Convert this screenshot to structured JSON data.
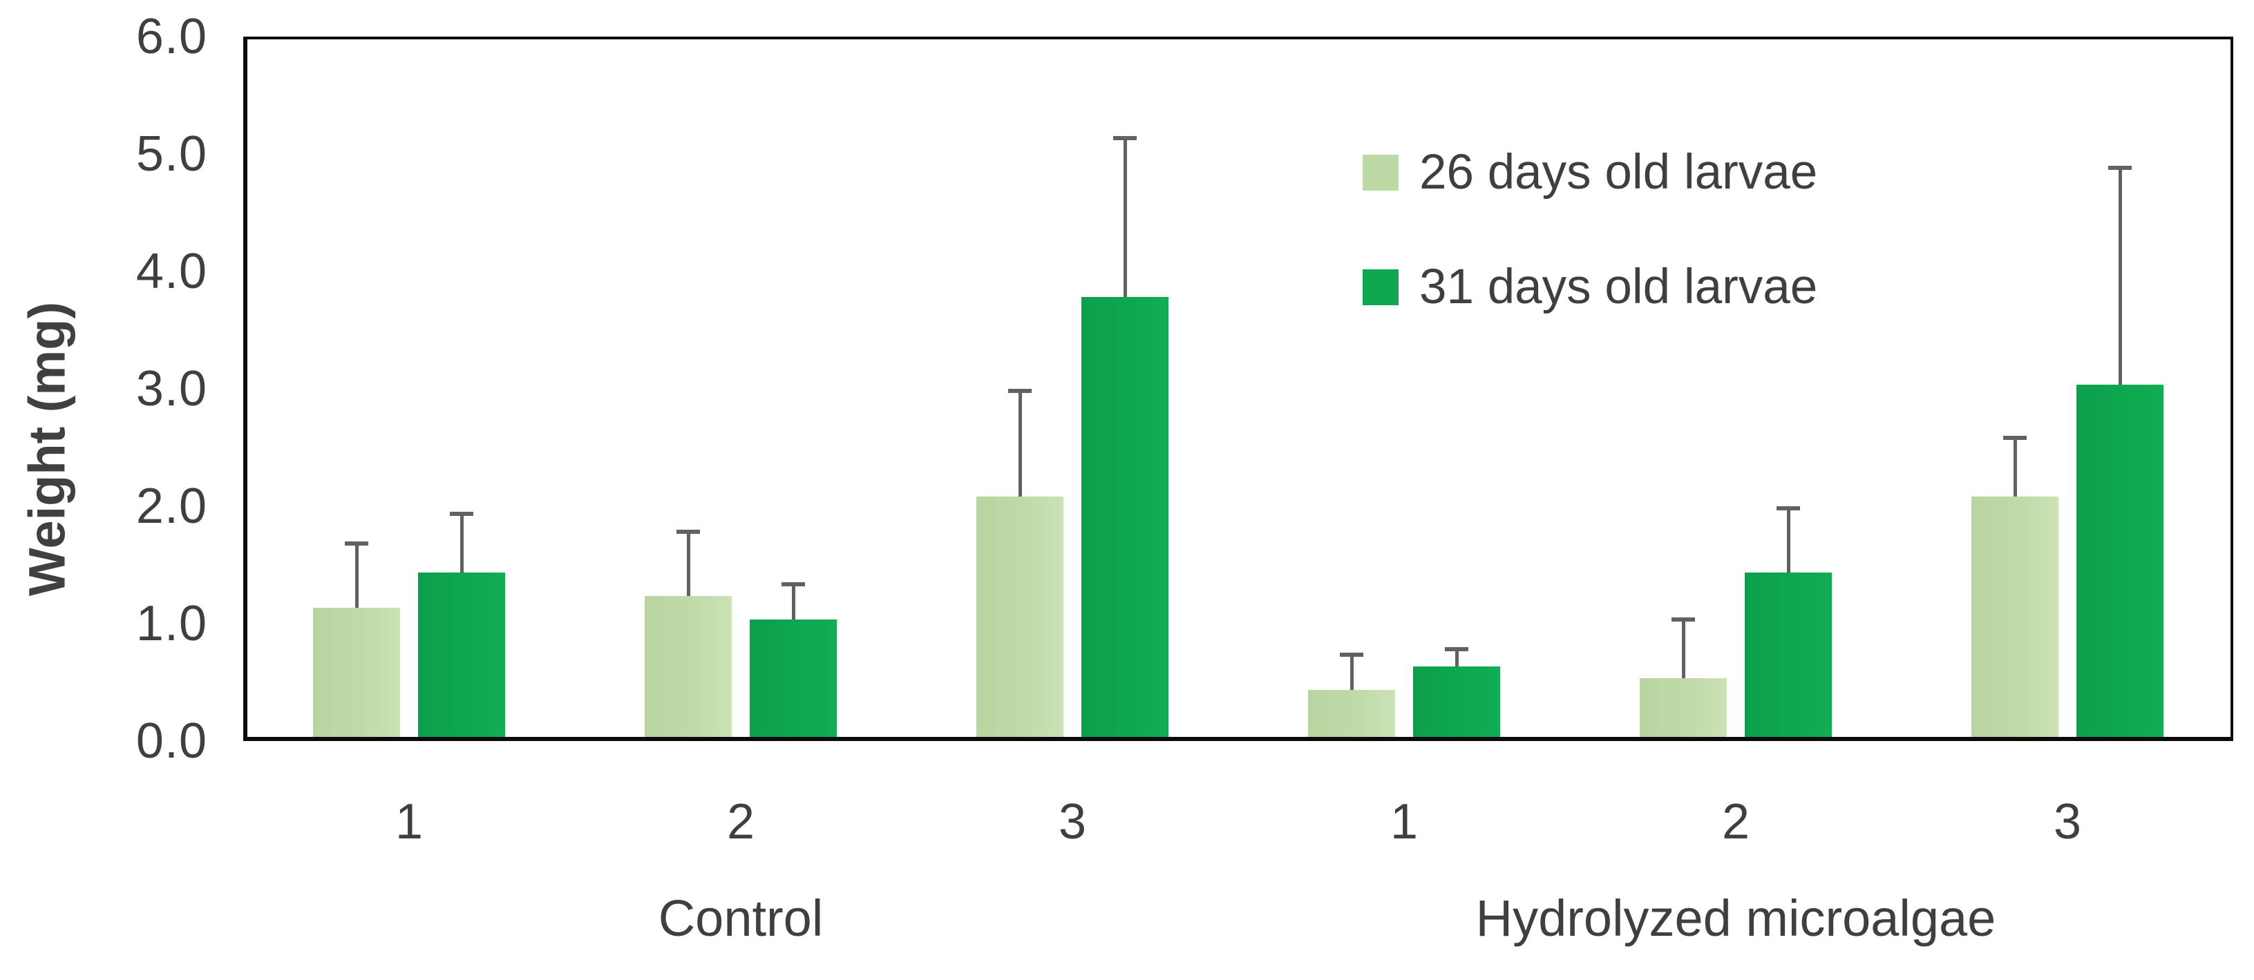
{
  "chart_data": {
    "type": "bar",
    "title": "",
    "ylabel": "Weight (mg)",
    "xlabel": "",
    "ylim": [
      0,
      6
    ],
    "ytick_labels": [
      "0.0",
      "1.0",
      "2.0",
      "3.0",
      "4.0",
      "5.0",
      "6.0"
    ],
    "categories": [
      "1",
      "2",
      "3",
      "1",
      "2",
      "3"
    ],
    "group_labels": [
      "Control",
      "Hydrolyzed microalgae"
    ],
    "grid": false,
    "legend_position": "inside-top-right",
    "error_bars": "plus-one-sided",
    "series": [
      {
        "name": "26 days old larvae",
        "color": "#bdd9a5",
        "values": [
          1.1,
          1.2,
          2.05,
          0.4,
          0.5,
          2.05
        ],
        "errors": [
          0.55,
          0.55,
          0.9,
          0.3,
          0.5,
          0.5
        ]
      },
      {
        "name": "31 days old larvae",
        "color": "#0fa750",
        "values": [
          1.4,
          1.0,
          3.75,
          0.6,
          1.4,
          3.0
        ],
        "errors": [
          0.5,
          0.3,
          1.35,
          0.15,
          0.55,
          1.85
        ]
      }
    ],
    "colors": {
      "text": "#3f3f3f",
      "axis": "#0b0b0b",
      "error_bar": "#616161",
      "series_light": "#bdd9a5",
      "series_dark": "#0fa750"
    }
  }
}
